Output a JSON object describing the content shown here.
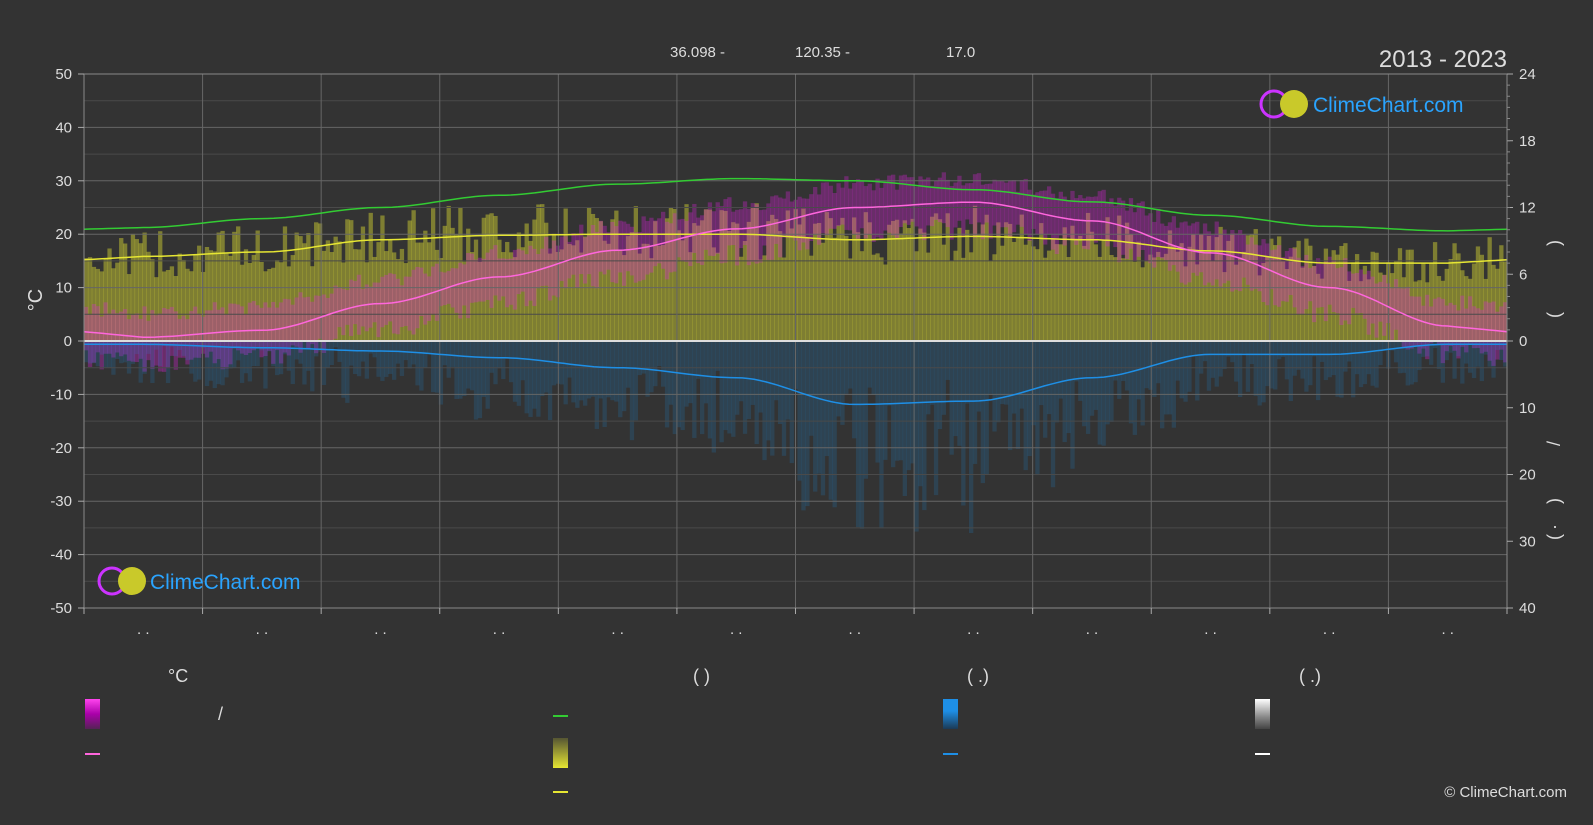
{
  "header": {
    "latitude": "36.098 -",
    "longitude": "120.35 -",
    "elevation": "17.0",
    "year_range": "2013 - 2023"
  },
  "logo": {
    "text": "ClimeChart.com"
  },
  "copyright": "© ClimeChart.com",
  "axes": {
    "left_unit": "°C",
    "month_tick_placeholder": ". ."
  },
  "legend": {
    "col1_header": "°C",
    "col1_slash": "/",
    "col2_header": "(          )",
    "col3_header": "(    .)",
    "col4_header": "(    .)"
  },
  "colors": {
    "background": "#333333",
    "daylight": "#33cc33",
    "sunshine": "#e6e633",
    "temperature": "#ff66dd",
    "temperature_band": "#dd22dd",
    "precipitation": "#1e8fe6",
    "snow": "#ffffff",
    "grid": "#666666",
    "logo_text": "#2aa4ff"
  },
  "chart_data": {
    "type": "line",
    "x_unit": "month",
    "x": [
      0.5,
      1.5,
      2.5,
      3.5,
      4.5,
      5.5,
      6.5,
      7.5,
      8.5,
      9.5,
      10.5,
      11.5
    ],
    "ylim_left": [
      -50,
      50
    ],
    "yticks_left": [
      50,
      40,
      30,
      20,
      10,
      0,
      -10,
      -20,
      -30,
      -40,
      -50
    ],
    "yticks_right_hours": [
      24,
      18,
      12,
      6,
      0
    ],
    "yticks_right_precip": [
      0,
      10,
      20,
      30,
      40
    ],
    "series": [
      {
        "key": "daylight_hours",
        "axis": "hours",
        "values": [
          10.2,
          11.0,
          12.0,
          13.1,
          14.1,
          14.6,
          14.4,
          13.6,
          12.5,
          11.3,
          10.3,
          9.9
        ]
      },
      {
        "key": "sunshine_hours",
        "axis": "hours",
        "values": [
          7.6,
          8.0,
          9.1,
          9.5,
          9.6,
          9.6,
          9.1,
          9.4,
          9.1,
          8.1,
          7.0,
          7.0
        ]
      },
      {
        "key": "mean_temperature",
        "axis": "celsius",
        "values": [
          0.7,
          2.0,
          7.0,
          12.0,
          17.0,
          21.0,
          25.0,
          26.0,
          22.5,
          16.5,
          10.0,
          2.8
        ]
      },
      {
        "key": "precipitation_mm",
        "axis": "precip",
        "values": [
          0.5,
          1.0,
          1.5,
          2.5,
          4.0,
          5.5,
          9.5,
          9.0,
          5.5,
          2.0,
          2.0,
          0.5
        ]
      }
    ],
    "grid": true
  }
}
